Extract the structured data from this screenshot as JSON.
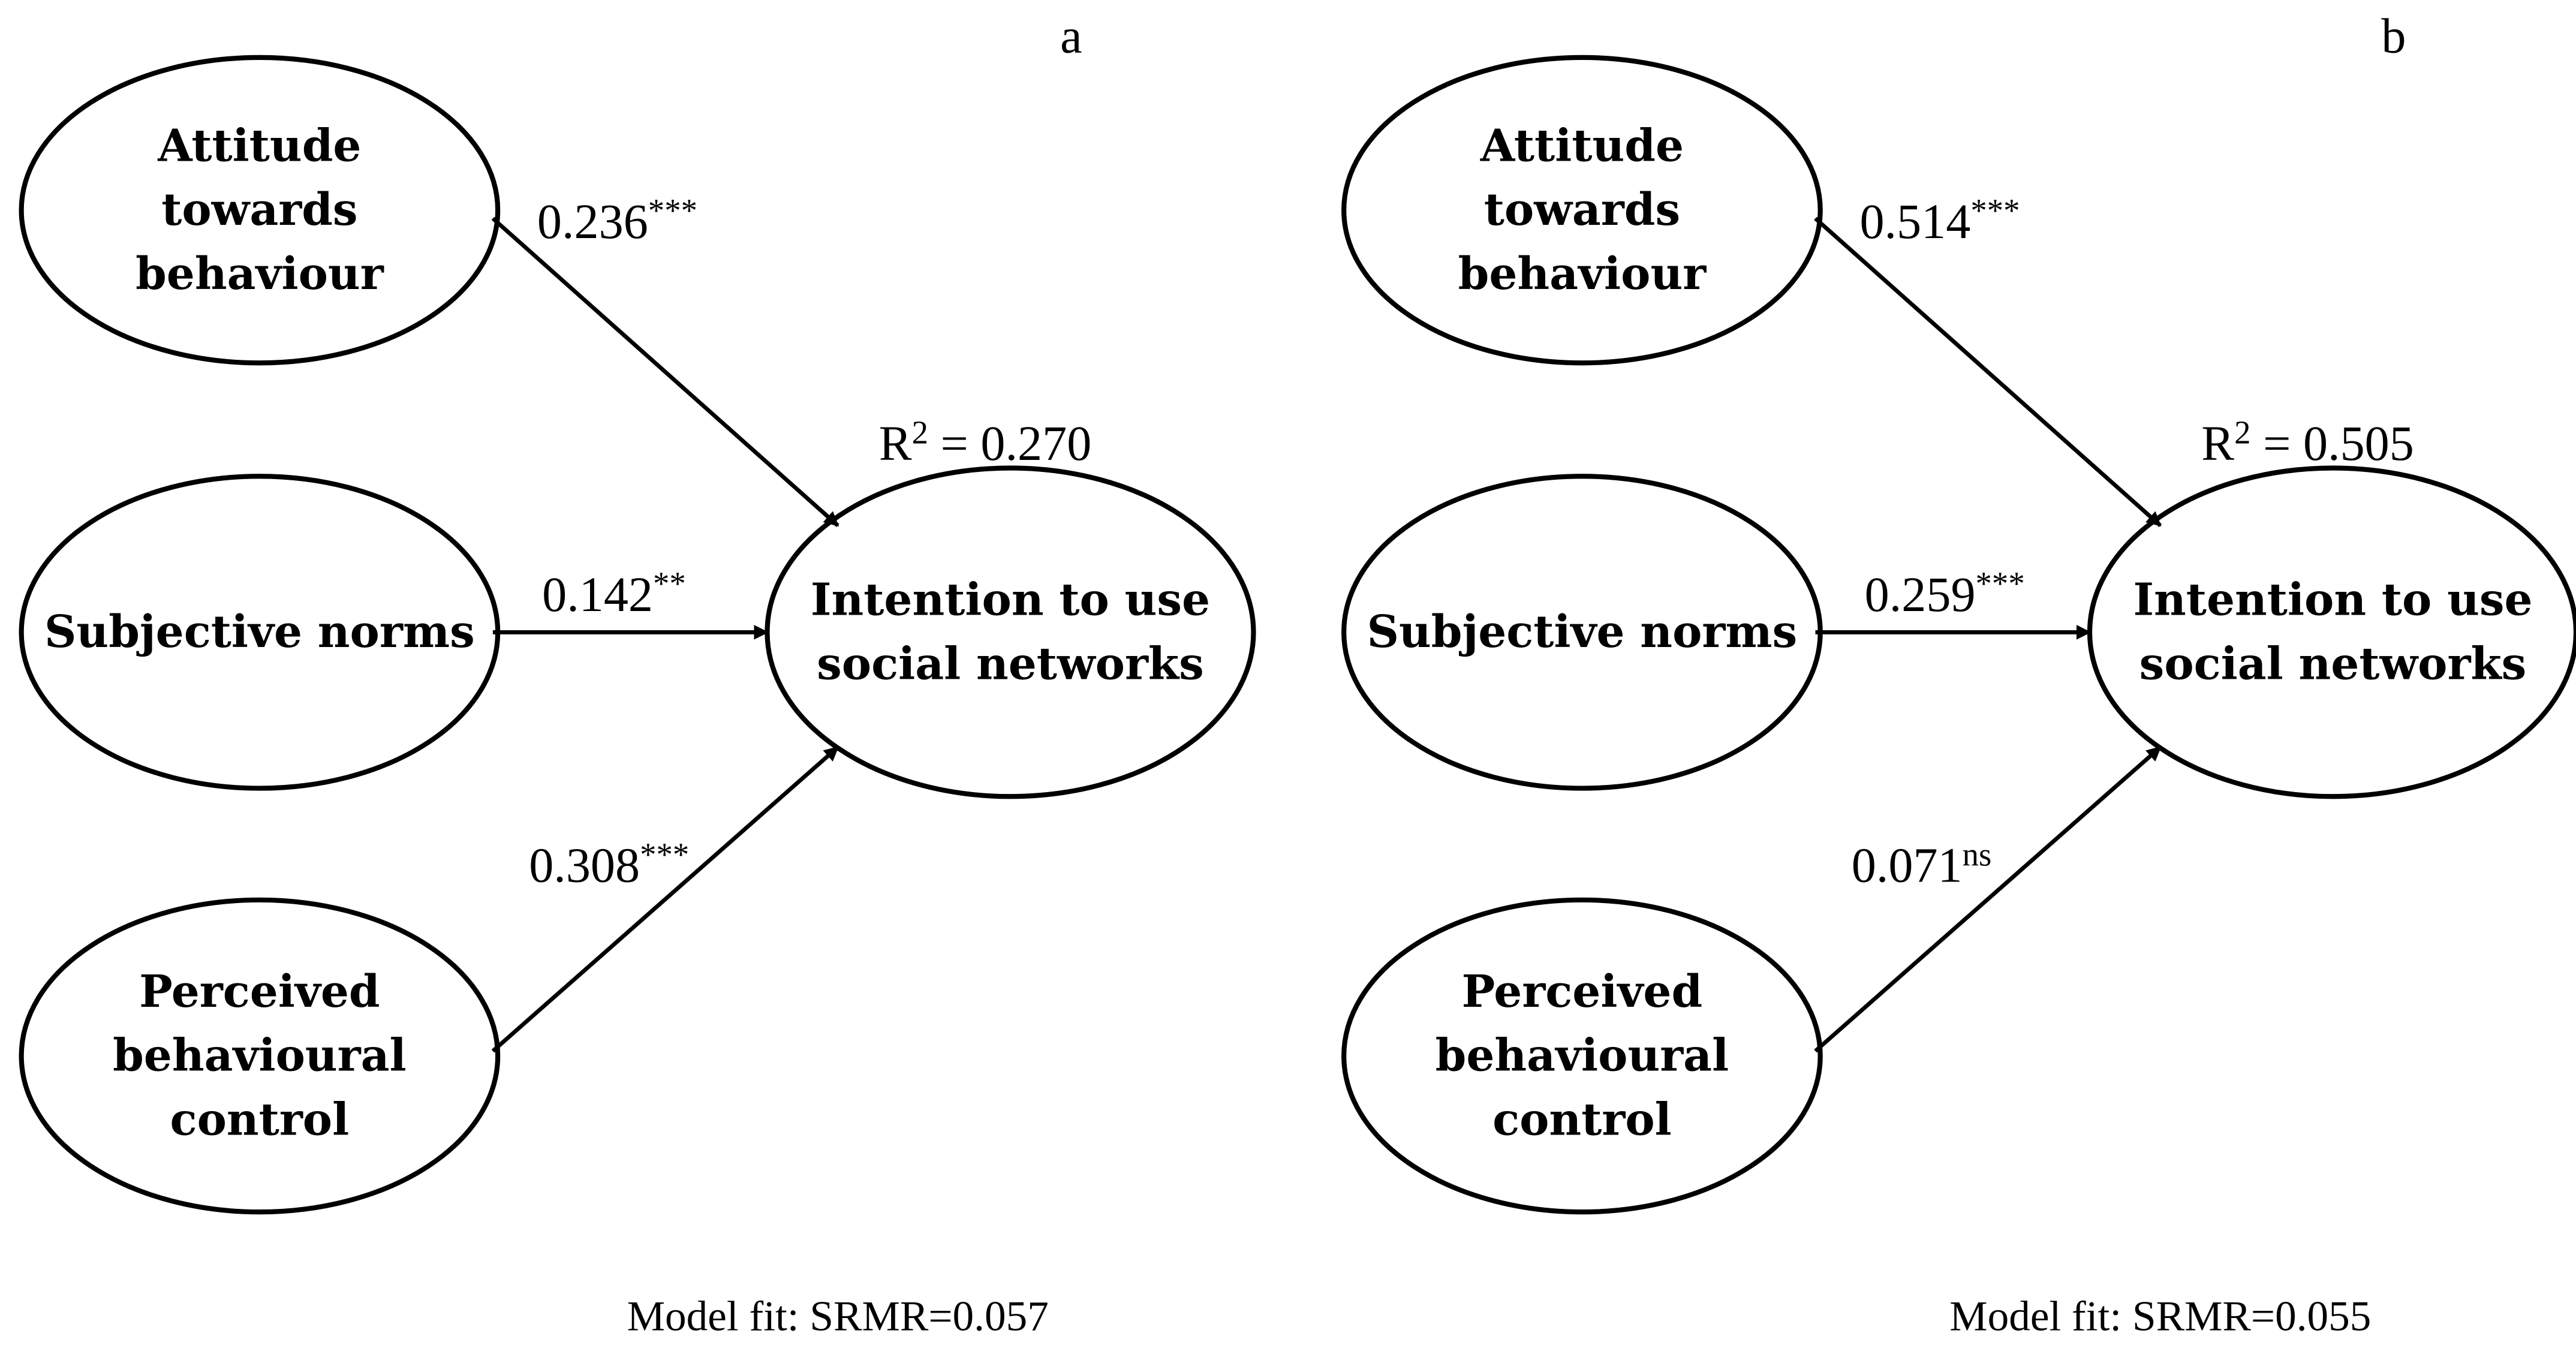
{
  "panels": [
    {
      "label": "a",
      "nodes": [
        {
          "lines": [
            "Attitude",
            "towards",
            "behaviour"
          ]
        },
        {
          "lines": [
            "Subjective norms"
          ]
        },
        {
          "lines": [
            "Perceived",
            "behavioural",
            "control"
          ]
        },
        {
          "lines": [
            "Intention to use",
            "social networks"
          ]
        }
      ],
      "paths": [
        {
          "coefficient": "0.236",
          "significance": "***"
        },
        {
          "coefficient": "0.142",
          "significance": "**"
        },
        {
          "coefficient": "0.308",
          "significance": "***"
        }
      ],
      "r_squared": {
        "symbol": "R",
        "exponent": "2",
        "text": " = 0.270"
      },
      "model_fit": "Model fit: SRMR=0.057"
    },
    {
      "label": "b",
      "nodes": [
        {
          "lines": [
            "Attitude",
            "towards",
            "behaviour"
          ]
        },
        {
          "lines": [
            "Subjective norms"
          ]
        },
        {
          "lines": [
            "Perceived",
            "behavioural",
            "control"
          ]
        },
        {
          "lines": [
            "Intention to use",
            "social networks"
          ]
        }
      ],
      "paths": [
        {
          "coefficient": "0.514",
          "significance": "***"
        },
        {
          "coefficient": "0.259",
          "significance": "***"
        },
        {
          "coefficient": "0.071",
          "significance": "ns"
        }
      ],
      "r_squared": {
        "symbol": "R",
        "exponent": "2",
        "text": " = 0.505"
      },
      "model_fit": "Model fit: SRMR=0.055"
    }
  ]
}
